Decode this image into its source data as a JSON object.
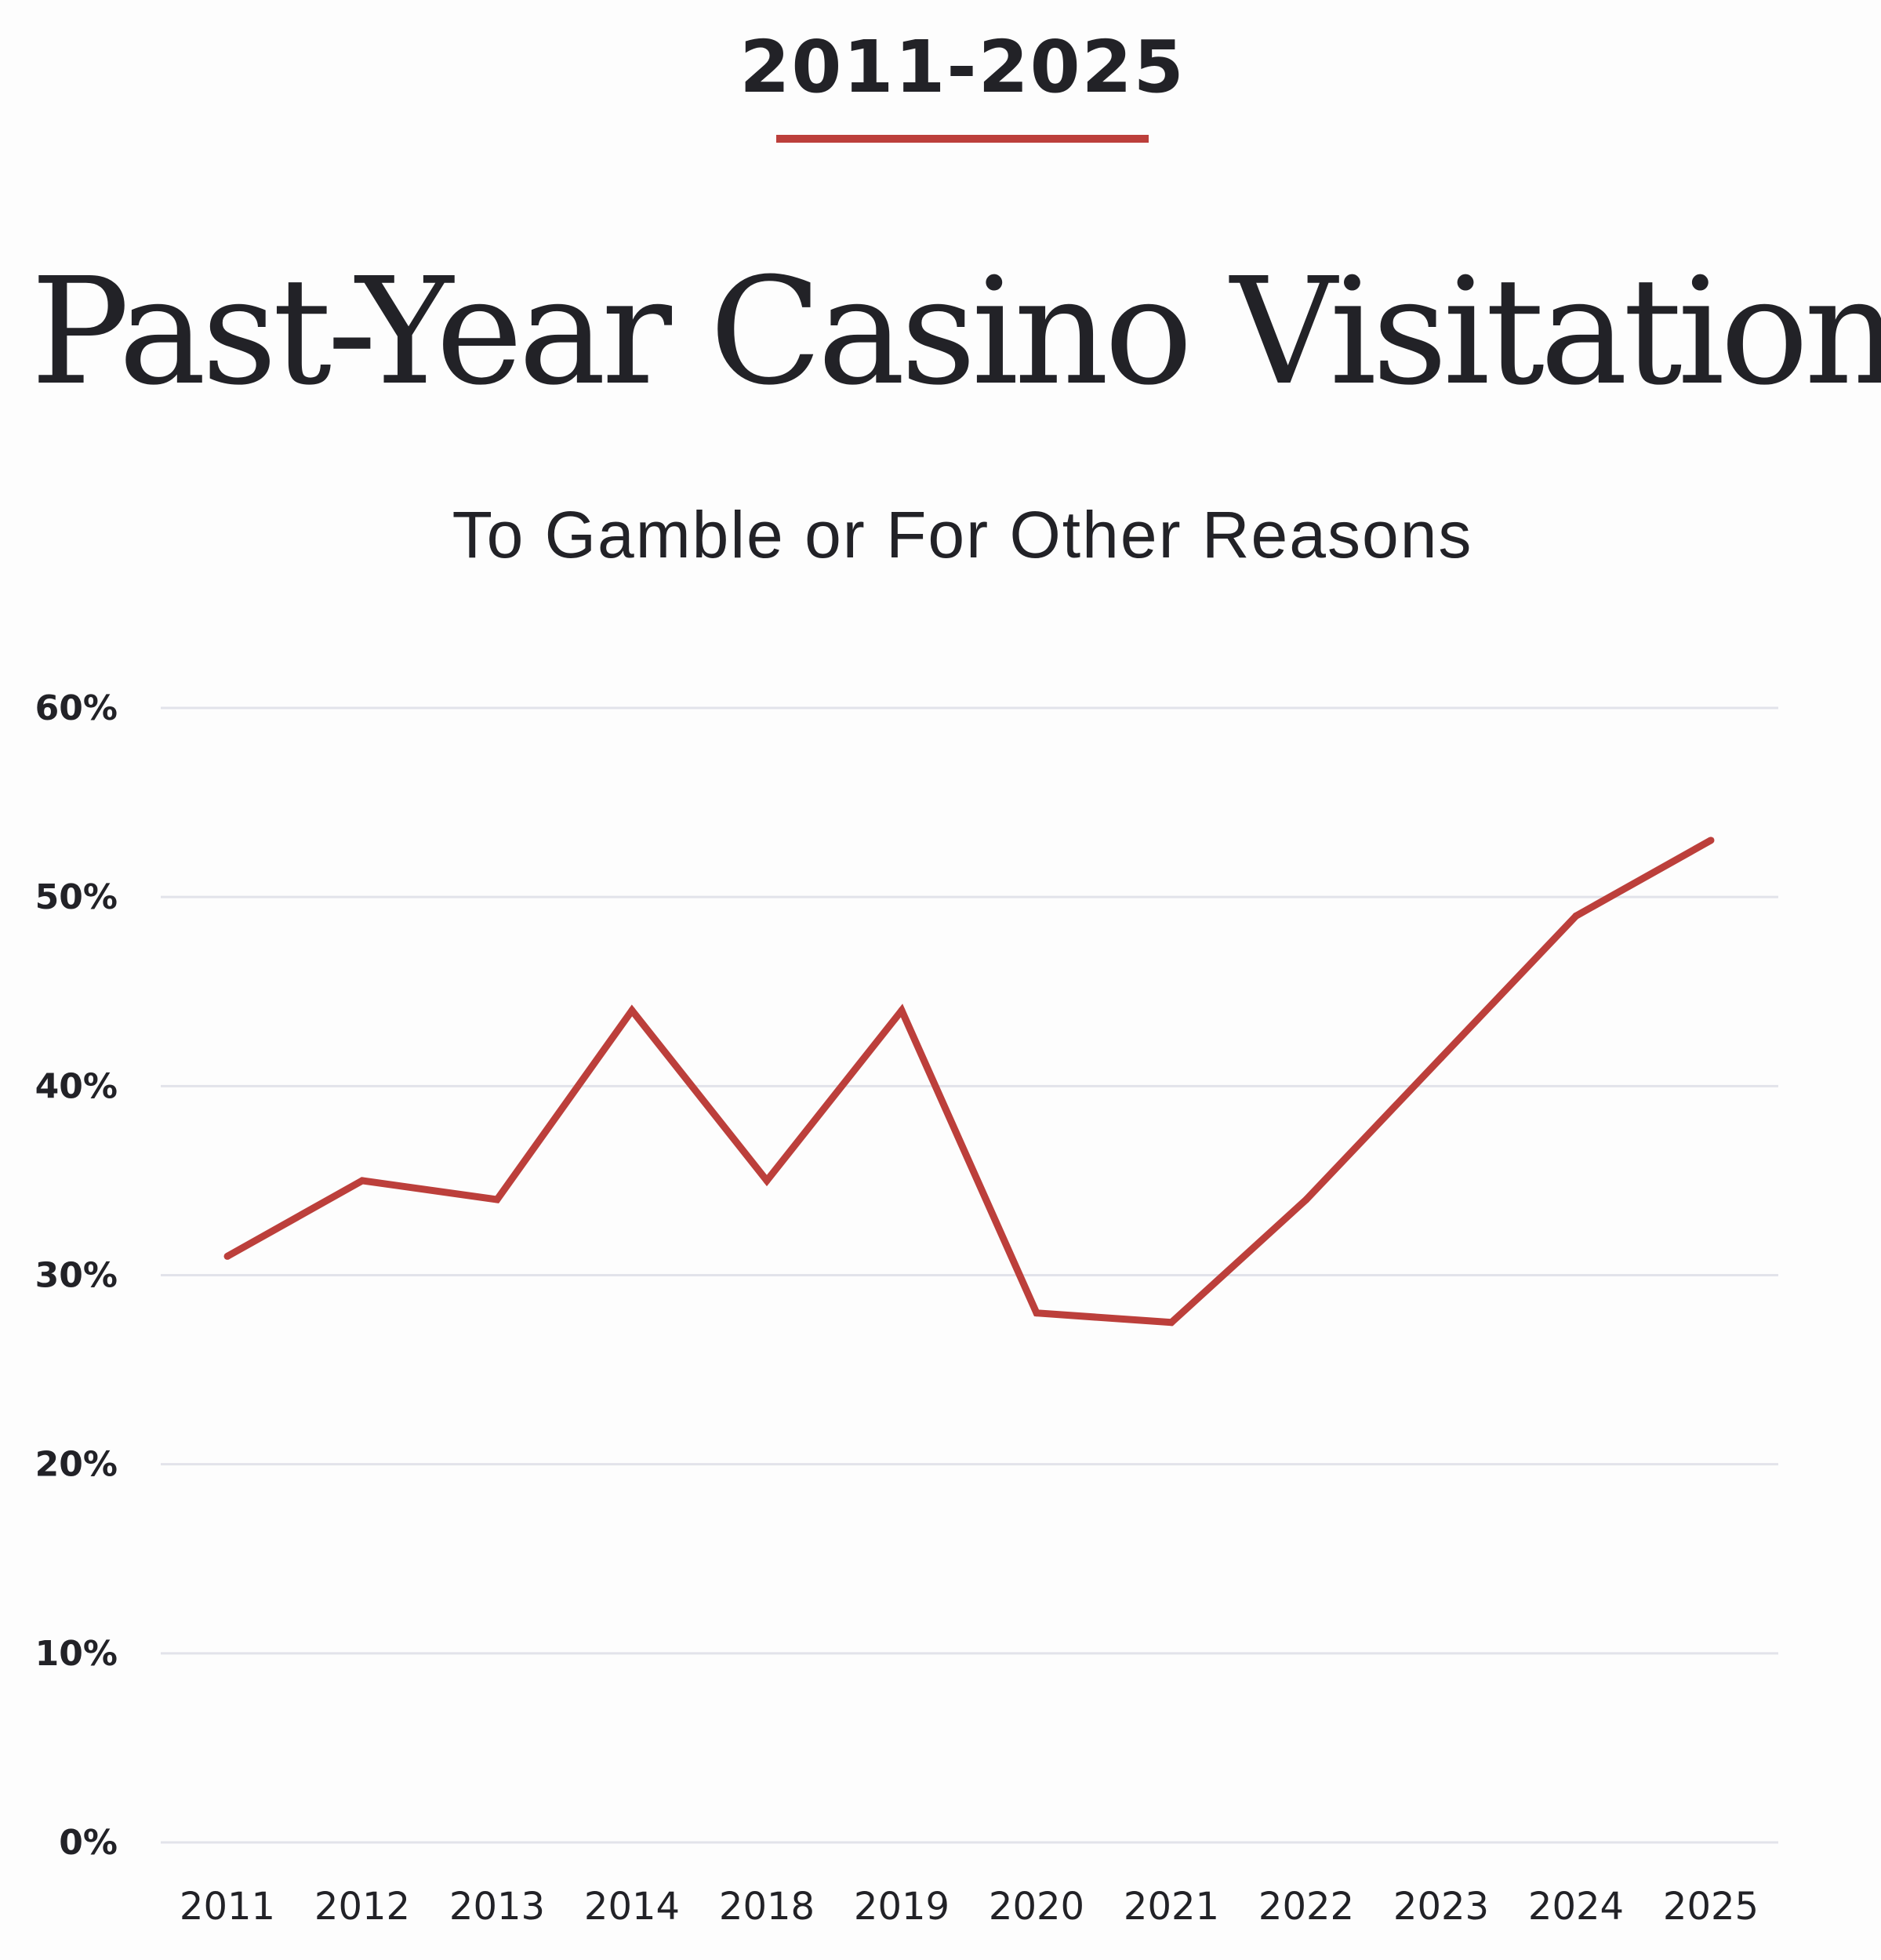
{
  "header": {
    "range_label": "2011-2025",
    "title": "Past-Year Casino Visitation",
    "subtitle": "To Gamble or For Other Reasons"
  },
  "colors": {
    "line": "#bc3f3b",
    "grid": "#e2e3ea",
    "text": "#222227"
  },
  "chart_data": {
    "type": "line",
    "title": "Past-Year Casino Visitation",
    "subtitle": "To Gamble or For Other Reasons",
    "categories": [
      "2011",
      "2012",
      "2013",
      "2014",
      "2018",
      "2019",
      "2020",
      "2021",
      "2022",
      "2023",
      "2024",
      "2025"
    ],
    "series": [
      {
        "values": [
          31,
          35,
          34,
          44,
          35,
          44,
          28,
          27.5,
          34,
          41.5,
          49,
          53
        ]
      }
    ],
    "y_ticks": [
      "0%",
      "10%",
      "20%",
      "30%",
      "40%",
      "50%",
      "60%"
    ],
    "ylim": [
      0,
      60
    ],
    "y_unit": "%",
    "grid": true,
    "legend": "none"
  }
}
